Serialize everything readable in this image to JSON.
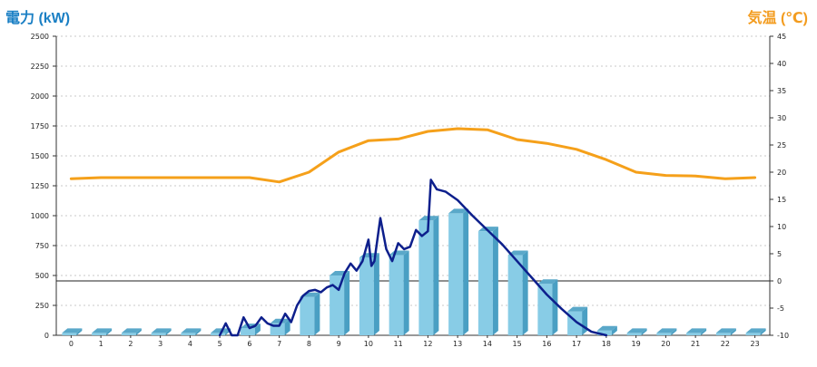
{
  "chart_data": {
    "type": "bar",
    "left_axis_title": "電力 (kW)",
    "right_axis_title": "気温 (℃)",
    "categories": [
      "0",
      "1",
      "2",
      "3",
      "4",
      "5",
      "6",
      "7",
      "8",
      "9",
      "10",
      "11",
      "12",
      "13",
      "14",
      "15",
      "16",
      "17",
      "18",
      "19",
      "20",
      "21",
      "22",
      "23"
    ],
    "left_ylim": [
      0,
      2500
    ],
    "left_ticks": [
      0,
      250,
      500,
      750,
      1000,
      1250,
      1500,
      1750,
      2000,
      2250,
      2500
    ],
    "right_ylim": [
      -10,
      45
    ],
    "right_ticks": [
      -10,
      -5,
      0,
      5,
      10,
      15,
      20,
      25,
      30,
      35,
      40,
      45
    ],
    "grid": true,
    "bar_series": {
      "values": [
        20,
        20,
        20,
        20,
        20,
        20,
        60,
        100,
        320,
        500,
        650,
        670,
        960,
        1020,
        870,
        670,
        430,
        200,
        40,
        20,
        20,
        20,
        20,
        20
      ],
      "color": "#88cce6",
      "side_color": "#4a9fc3",
      "top_color": "#5aa8c9"
    },
    "temperature_series": {
      "axis": "right",
      "color": "#f5a01a",
      "x": [
        0,
        1,
        2,
        3,
        4,
        5,
        6,
        7,
        8,
        9,
        10,
        11,
        12,
        13,
        14,
        15,
        16,
        17,
        18,
        19,
        20,
        21,
        22,
        23
      ],
      "y": [
        18.8,
        19.0,
        19.0,
        19.0,
        19.0,
        19.0,
        19.0,
        18.2,
        20.0,
        23.7,
        25.8,
        26.1,
        27.5,
        28.0,
        27.8,
        26.0,
        25.3,
        24.2,
        22.3,
        20.0,
        19.4,
        19.3,
        18.8,
        19.0
      ]
    },
    "power_series": {
      "axis": "left",
      "color": "#0d1f8c",
      "x": [
        5.0,
        5.2,
        5.4,
        5.6,
        5.8,
        6.0,
        6.2,
        6.4,
        6.6,
        6.8,
        7.0,
        7.2,
        7.4,
        7.6,
        7.8,
        8.0,
        8.2,
        8.4,
        8.6,
        8.8,
        9.0,
        9.2,
        9.4,
        9.6,
        9.8,
        10.0,
        10.1,
        10.2,
        10.4,
        10.6,
        10.8,
        11.0,
        11.2,
        11.4,
        11.6,
        11.8,
        12.0,
        12.1,
        12.3,
        12.6,
        13.0,
        13.5,
        14.0,
        14.5,
        15.0,
        15.5,
        16.0,
        16.5,
        17.0,
        17.5,
        18.0
      ],
      "y": [
        0,
        100,
        0,
        0,
        150,
        60,
        80,
        150,
        100,
        80,
        80,
        180,
        110,
        250,
        330,
        370,
        380,
        360,
        400,
        420,
        380,
        520,
        600,
        540,
        620,
        800,
        580,
        620,
        980,
        720,
        620,
        770,
        720,
        740,
        880,
        830,
        870,
        1300,
        1220,
        1200,
        1130,
        1000,
        880,
        760,
        620,
        480,
        340,
        220,
        110,
        30,
        0
      ]
    }
  }
}
